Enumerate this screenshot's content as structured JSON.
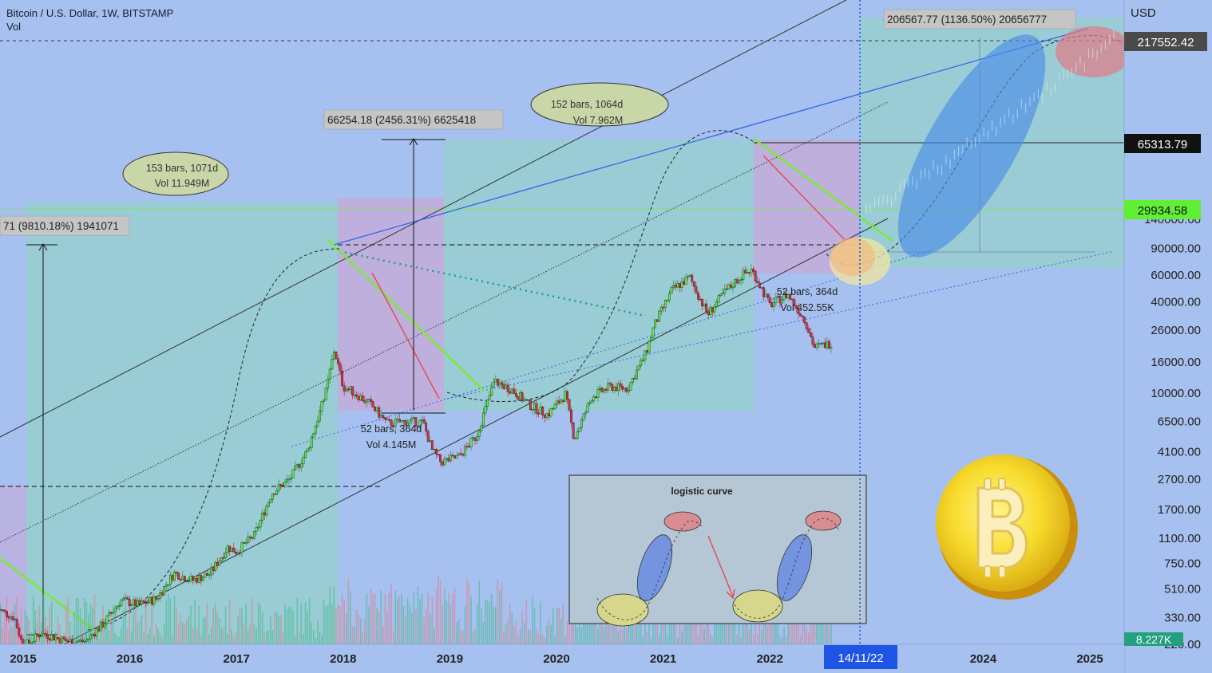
{
  "header": {
    "symbol": "Bitcoin / U.S. Dollar, 1W, BITSTAMP",
    "indicator": "Vol"
  },
  "chart_data": {
    "type": "candlestick",
    "title": "Bitcoin / U.S. Dollar, 1W, BITSTAMP",
    "price_unit": "USD",
    "y_scale": "log",
    "ylim": [
      190,
      300000
    ],
    "xlim": [
      "2014-10",
      "2025-06"
    ],
    "y_ticks": [
      140000,
      90000,
      60000,
      40000,
      26000,
      16000,
      10000,
      6500,
      4100,
      2700,
      1700,
      1100,
      750,
      510,
      330,
      220
    ],
    "y_tick_labels": [
      "140000.00",
      "90000.00",
      "60000.00",
      "40000.00",
      "26000.00",
      "16000.00",
      "10000.00",
      "6500.00",
      "4100.00",
      "2700.00",
      "1700.00",
      "1100.00",
      "750.00",
      "510.00",
      "330.00",
      "220.00"
    ],
    "x_ticks": [
      2015,
      2016,
      2017,
      2018,
      2019,
      2020,
      2021,
      2022,
      2024,
      2025
    ],
    "x_tick_labels": [
      "2015",
      "2016",
      "2017",
      "2018",
      "2019",
      "2020",
      "2021",
      "2022",
      "2024",
      "2025"
    ],
    "grid": false,
    "price_path": [
      [
        "2014-10",
        380
      ],
      [
        "2014-12",
        330
      ],
      [
        "2015-01",
        210
      ],
      [
        "2015-03",
        260
      ],
      [
        "2015-06",
        230
      ],
      [
        "2015-08",
        230
      ],
      [
        "2015-10",
        300
      ],
      [
        "2015-12",
        430
      ],
      [
        "2016-02",
        400
      ],
      [
        "2016-04",
        440
      ],
      [
        "2016-06",
        650
      ],
      [
        "2016-08",
        580
      ],
      [
        "2016-10",
        640
      ],
      [
        "2016-12",
        960
      ],
      [
        "2017-01",
        900
      ],
      [
        "2017-03",
        1150
      ],
      [
        "2017-05",
        2200
      ],
      [
        "2017-07",
        2700
      ],
      [
        "2017-09",
        4200
      ],
      [
        "2017-11",
        9800
      ],
      [
        "2017-12",
        19500
      ],
      [
        "2018-01",
        11000
      ],
      [
        "2018-02",
        10300
      ],
      [
        "2018-04",
        8500
      ],
      [
        "2018-06",
        6300
      ],
      [
        "2018-08",
        6500
      ],
      [
        "2018-10",
        6400
      ],
      [
        "2018-11",
        4200
      ],
      [
        "2018-12",
        3500
      ],
      [
        "2019-02",
        3800
      ],
      [
        "2019-04",
        5200
      ],
      [
        "2019-06",
        12000
      ],
      [
        "2019-08",
        10500
      ],
      [
        "2019-10",
        8300
      ],
      [
        "2019-12",
        7200
      ],
      [
        "2020-02",
        9800
      ],
      [
        "2020-03",
        5000
      ],
      [
        "2020-05",
        9500
      ],
      [
        "2020-07",
        11000
      ],
      [
        "2020-09",
        10700
      ],
      [
        "2020-11",
        18000
      ],
      [
        "2020-12",
        28000
      ],
      [
        "2021-02",
        48000
      ],
      [
        "2021-04",
        58000
      ],
      [
        "2021-06",
        33000
      ],
      [
        "2021-08",
        47000
      ],
      [
        "2021-10",
        61000
      ],
      [
        "2021-11",
        65000
      ],
      [
        "2022-01",
        38000
      ],
      [
        "2022-03",
        45000
      ],
      [
        "2022-05",
        30000
      ],
      [
        "2022-06",
        20000
      ],
      [
        "2022-08",
        21500
      ]
    ],
    "price_labels": {
      "current_price": "29934.58",
      "horizontal_level": "65313.79",
      "top_projection": "217552.42"
    },
    "cursor_date_label": "14/11/22",
    "volume_label": "8.227K",
    "measurements": [
      {
        "text": "71 (9810.18%) 1941071"
      },
      {
        "text": "66254.18 (2456.31%) 6625418"
      },
      {
        "text": "206567.77 (1136.50%) 20656777"
      }
    ],
    "annotations": [
      {
        "line1": "153 bars, 1071d",
        "line2": "Vol 11.949M"
      },
      {
        "line1": "152 bars, 1064d",
        "line2": "Vol 7.962M"
      },
      {
        "line1": "52 bars, 364d",
        "line2": "Vol 4.145M"
      },
      {
        "line1": "52 bars, 364d",
        "line2": "Vol 452.55K"
      }
    ],
    "inset": {
      "title": "logistic curve"
    },
    "colors": {
      "background": "#a6c1ef",
      "bull_box": "#8fd6c0",
      "bear_box": "#c9a7d6",
      "green_trend": "#7aeb35",
      "red_trend": "#e9474f",
      "blue_trend": "#2f66e8",
      "ellipse_blue": "#4a8ee6",
      "ellipse_red": "#e07a85",
      "ellipse_yellow": "#f2e6a0",
      "price_tag_green": "#5ff033",
      "date_tag": "#1e55e6"
    }
  }
}
